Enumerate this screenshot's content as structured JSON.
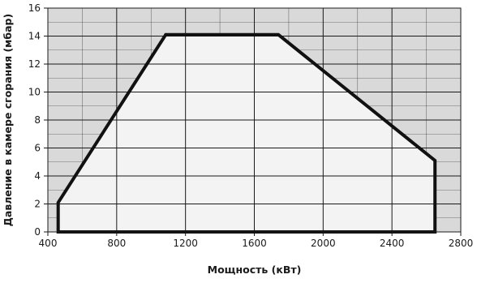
{
  "colors": {
    "outer_band": "#d9d9d9",
    "inner_region": "#f3f3f3",
    "grid": "#1a1a1a",
    "envelope": "#111111",
    "text": "#1a1a1a"
  },
  "chart_data": {
    "type": "area",
    "title": "",
    "xlabel": "Мощность (кВт)",
    "ylabel": "Давление в камере сгорания (мбар)",
    "xlim": [
      400,
      2800
    ],
    "ylim": [
      0,
      16
    ],
    "x_ticks": [
      400,
      800,
      1200,
      1600,
      2000,
      2400,
      2800
    ],
    "y_ticks": [
      0,
      2,
      4,
      6,
      8,
      10,
      12,
      14,
      16
    ],
    "x_tick_labels": [
      "400",
      "800",
      "1200",
      "1600",
      "2000",
      "2400",
      "2800"
    ],
    "y_tick_labels": [
      "0",
      "2",
      "4",
      "6",
      "8",
      "10",
      "12",
      "14",
      "16"
    ],
    "x_minor_step": 200,
    "y_minor_step": 1,
    "grid": true,
    "legend": "none",
    "series": [
      {
        "x": [
          460,
          460,
          1085,
          1740,
          2650,
          2650,
          460
        ],
        "y": [
          0,
          2.1,
          14.1,
          14.1,
          5.1,
          0,
          0
        ]
      }
    ]
  }
}
